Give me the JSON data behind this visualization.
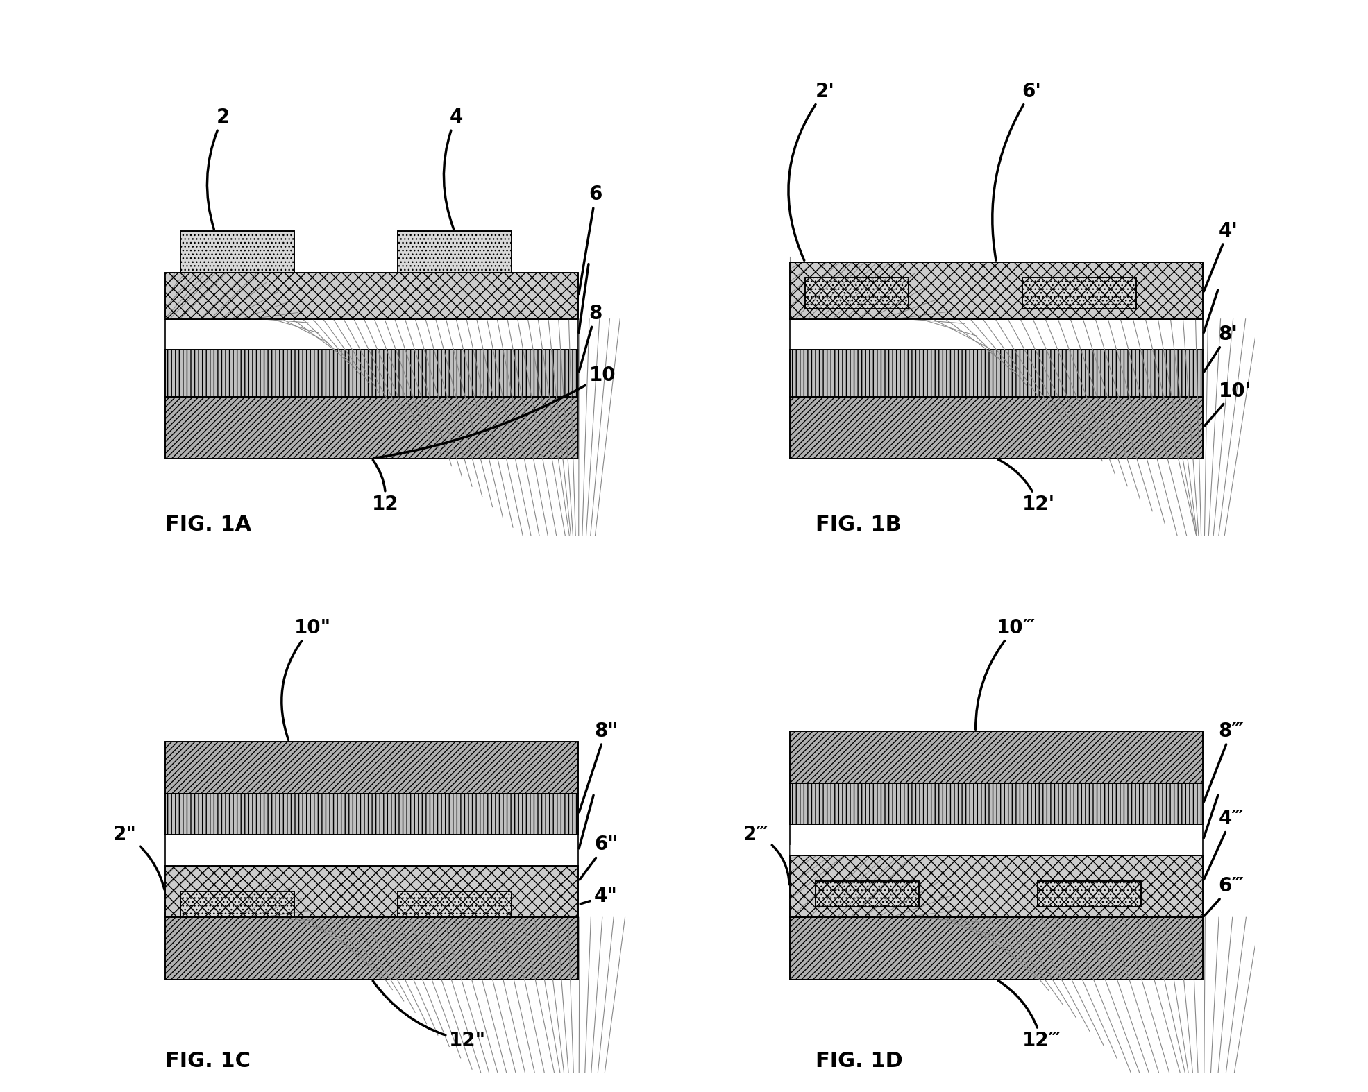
{
  "background_color": "#ffffff",
  "fig_labels": [
    "FIG. 1A",
    "FIG. 1B",
    "FIG. 1C",
    "FIG. 1D"
  ],
  "fig_label_fontsize": 22,
  "annotation_fontsize": 20,
  "layer_colors": {
    "dotted": "#d4d4d4",
    "crosshatch": "#b0b0b0",
    "white": "#ffffff",
    "hlines": "#c8c8c8",
    "diag": "#a0a0a0"
  }
}
